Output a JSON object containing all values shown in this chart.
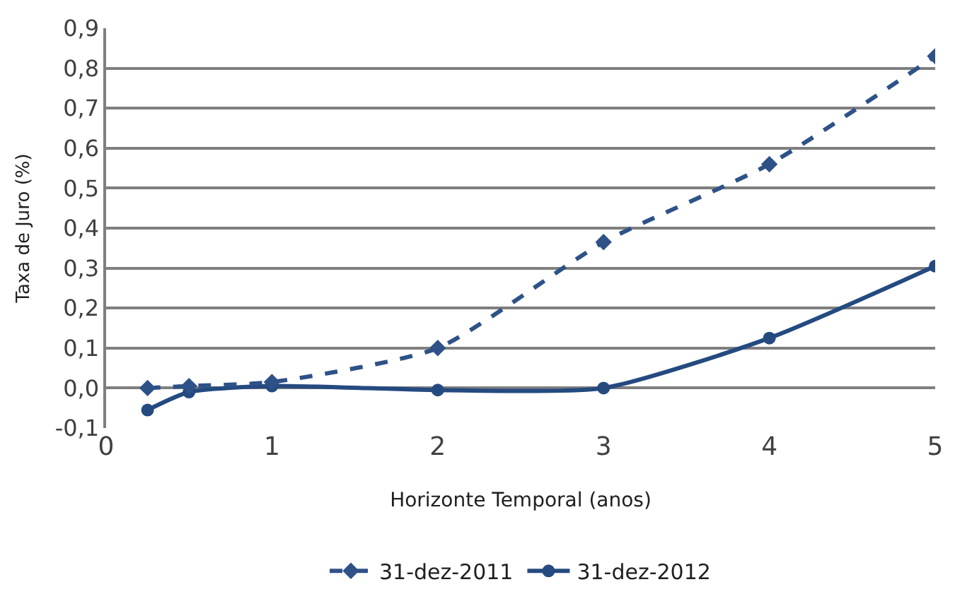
{
  "chart_data": {
    "type": "line",
    "xlabel": "Horizonte Temporal (anos)",
    "ylabel": "Taxa de Juro (%)",
    "x": [
      0.25,
      0.5,
      1,
      2,
      3,
      4,
      5
    ],
    "series": [
      {
        "name": "31-dez-2011",
        "color": "#2e5288",
        "marker": "diamond",
        "line_style": "dashed",
        "values": [
          0.0,
          0.005,
          0.015,
          0.1,
          0.365,
          0.56,
          0.83
        ]
      },
      {
        "name": "31-dez-2012",
        "color": "#244a80",
        "marker": "circle",
        "line_style": "solid",
        "values": [
          -0.055,
          -0.01,
          0.005,
          -0.005,
          0.0,
          0.125,
          0.305
        ]
      }
    ],
    "xlim": [
      0,
      5
    ],
    "xticks": [
      0,
      1,
      2,
      3,
      4,
      5
    ],
    "ylim": [
      -0.1,
      0.9
    ],
    "yticks": [
      {
        "value": -0.1,
        "label": "-0,1"
      },
      {
        "value": 0.0,
        "label": "0,0"
      },
      {
        "value": 0.1,
        "label": "0,1"
      },
      {
        "value": 0.2,
        "label": "0,2"
      },
      {
        "value": 0.3,
        "label": "0,3"
      },
      {
        "value": 0.4,
        "label": "0,4"
      },
      {
        "value": 0.5,
        "label": "0,5"
      },
      {
        "value": 0.6,
        "label": "0,6"
      },
      {
        "value": 0.7,
        "label": "0,7"
      },
      {
        "value": 0.8,
        "label": "0,8"
      },
      {
        "value": 0.9,
        "label": "0,9"
      }
    ],
    "grid": "y",
    "legend": "bottom"
  }
}
